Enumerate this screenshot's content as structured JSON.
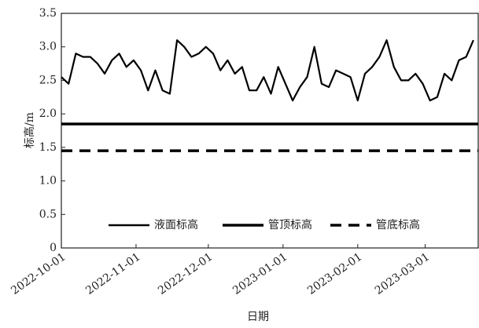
{
  "chart_data": {
    "type": "line",
    "xlabel": "日期",
    "ylabel": "标高/m",
    "xlim": [
      "2022-10-01",
      "2023-03-23"
    ],
    "xticks": [
      "2022-10-01",
      "2022-11-01",
      "2022-12-01",
      "2023-01-01",
      "2023-02-01",
      "2023-03-01"
    ],
    "ylim": [
      0,
      3.5
    ],
    "yticks": [
      0,
      0.5,
      {
        "value": 1,
        "label": "1.0"
      },
      1.5,
      {
        "value": 2,
        "label": "2.0"
      },
      2.5,
      {
        "value": 3,
        "label": "3.0"
      },
      3.5
    ],
    "legend": "bottom",
    "series": [
      {
        "name": "液面标高",
        "color": "#000000",
        "dashed": false,
        "x": [
          "2022-10-01",
          "2022-10-04",
          "2022-10-07",
          "2022-10-10",
          "2022-10-13",
          "2022-10-16",
          "2022-10-19",
          "2022-10-22",
          "2022-10-25",
          "2022-10-28",
          "2022-10-31",
          "2022-11-03",
          "2022-11-06",
          "2022-11-09",
          "2022-11-12",
          "2022-11-15",
          "2022-11-18",
          "2022-11-21",
          "2022-11-24",
          "2022-11-27",
          "2022-11-30",
          "2022-12-03",
          "2022-12-06",
          "2022-12-09",
          "2022-12-12",
          "2022-12-15",
          "2022-12-18",
          "2022-12-21",
          "2022-12-24",
          "2022-12-27",
          "2022-12-30",
          "2023-01-02",
          "2023-01-05",
          "2023-01-08",
          "2023-01-11",
          "2023-01-14",
          "2023-01-17",
          "2023-01-20",
          "2023-01-23",
          "2023-01-26",
          "2023-01-29",
          "2023-02-01",
          "2023-02-04",
          "2023-02-07",
          "2023-02-10",
          "2023-02-13",
          "2023-02-16",
          "2023-02-19",
          "2023-02-22",
          "2023-02-25",
          "2023-02-28",
          "2023-03-03",
          "2023-03-06",
          "2023-03-09",
          "2023-03-12",
          "2023-03-15",
          "2023-03-18",
          "2023-03-21"
        ],
        "values": [
          2.55,
          2.45,
          2.9,
          2.85,
          2.85,
          2.75,
          2.6,
          2.8,
          2.9,
          2.7,
          2.8,
          2.65,
          2.35,
          2.65,
          2.35,
          2.3,
          3.1,
          3.0,
          2.85,
          2.9,
          3.0,
          2.9,
          2.65,
          2.8,
          2.6,
          2.7,
          2.35,
          2.35,
          2.55,
          2.3,
          2.7,
          2.45,
          2.2,
          2.4,
          2.55,
          3.0,
          2.45,
          2.4,
          2.65,
          2.6,
          2.55,
          2.2,
          2.6,
          2.7,
          2.85,
          3.1,
          2.7,
          2.5,
          2.5,
          2.6,
          2.45,
          2.2,
          2.25,
          2.6,
          2.5,
          2.8,
          2.85,
          3.1
        ]
      },
      {
        "name": "管顶标高",
        "color": "#000000",
        "dashed": false,
        "x": [
          "2022-10-01",
          "2023-03-23"
        ],
        "values": [
          1.85,
          1.85
        ]
      },
      {
        "name": "管底标高",
        "color": "#000000",
        "dashed": true,
        "x": [
          "2022-10-01",
          "2023-03-23"
        ],
        "values": [
          1.45,
          1.45
        ]
      }
    ]
  }
}
